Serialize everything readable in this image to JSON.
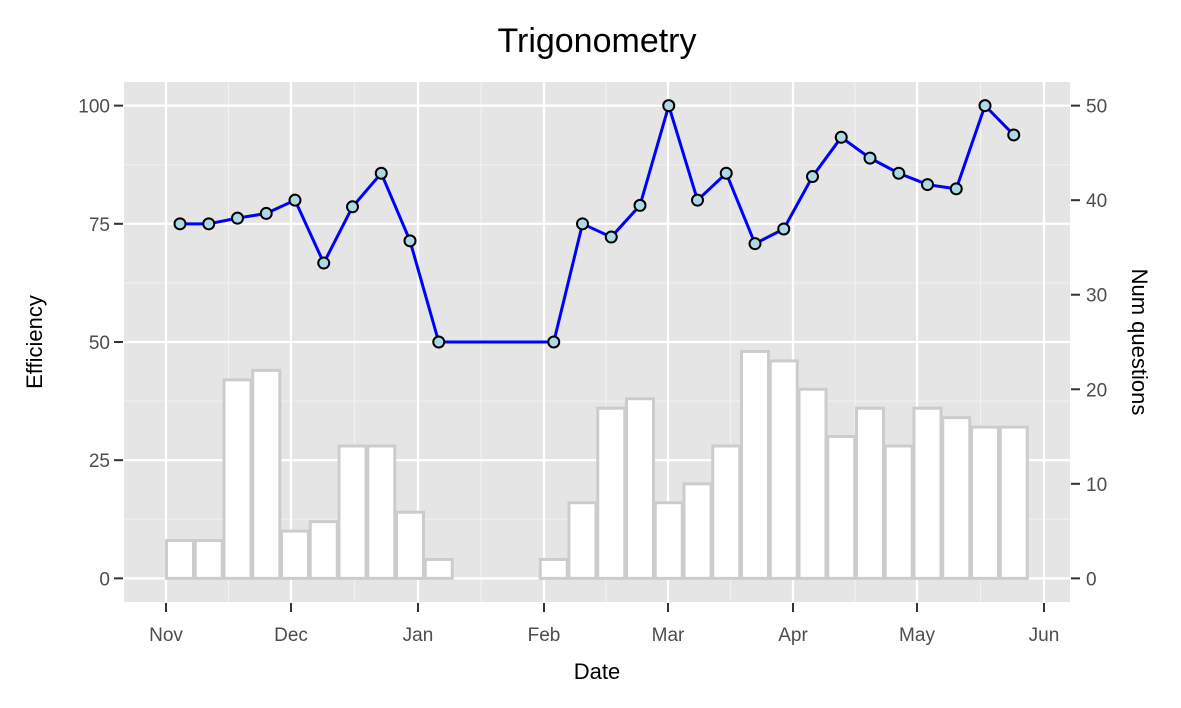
{
  "chart_data": {
    "type": "bar+line",
    "title": "Trigonometry",
    "xlabel": "Date",
    "ylabel": "Efficiency",
    "y2label": "Num questions",
    "x_tick_labels": [
      "Nov",
      "Dec",
      "Jan",
      "Feb",
      "Mar",
      "Apr",
      "May",
      "Jun"
    ],
    "y_ticks": [
      0,
      25,
      50,
      75,
      100
    ],
    "y2_ticks": [
      0,
      10,
      20,
      30,
      40,
      50
    ],
    "ylim": [
      -5,
      105
    ],
    "y2lim": [
      -2.5,
      52.5
    ],
    "grid": true,
    "bars": {
      "name": "Num questions",
      "axis": "right",
      "fill": "#ffffff",
      "stroke": "#cccccc",
      "values": [
        {
          "week": 0,
          "value": 4
        },
        {
          "week": 1,
          "value": 4
        },
        {
          "week": 2,
          "value": 21
        },
        {
          "week": 3,
          "value": 22
        },
        {
          "week": 4,
          "value": 5
        },
        {
          "week": 5,
          "value": 6
        },
        {
          "week": 6,
          "value": 14
        },
        {
          "week": 7,
          "value": 14
        },
        {
          "week": 8,
          "value": 7
        },
        {
          "week": 9,
          "value": 2
        },
        {
          "week": 13,
          "value": 2
        },
        {
          "week": 14,
          "value": 8
        },
        {
          "week": 15,
          "value": 18
        },
        {
          "week": 16,
          "value": 19
        },
        {
          "week": 17,
          "value": 8
        },
        {
          "week": 18,
          "value": 10
        },
        {
          "week": 19,
          "value": 14
        },
        {
          "week": 20,
          "value": 24
        },
        {
          "week": 21,
          "value": 23
        },
        {
          "week": 22,
          "value": 20
        },
        {
          "week": 23,
          "value": 15
        },
        {
          "week": 24,
          "value": 18
        },
        {
          "week": 25,
          "value": 14
        },
        {
          "week": 26,
          "value": 18
        },
        {
          "week": 27,
          "value": 17
        },
        {
          "week": 28,
          "value": 16
        },
        {
          "week": 29,
          "value": 16
        }
      ]
    },
    "line": {
      "name": "Efficiency",
      "axis": "left",
      "color": "#0000ff",
      "marker_fill": "#add8e6",
      "marker_stroke": "#000000",
      "values": [
        {
          "week": 0,
          "value": 75
        },
        {
          "week": 1,
          "value": 75
        },
        {
          "week": 2,
          "value": 76.2
        },
        {
          "week": 3,
          "value": 77.2
        },
        {
          "week": 4,
          "value": 80
        },
        {
          "week": 5,
          "value": 66.7
        },
        {
          "week": 6,
          "value": 78.6
        },
        {
          "week": 7,
          "value": 85.7
        },
        {
          "week": 8,
          "value": 71.4
        },
        {
          "week": 9,
          "value": 50
        },
        {
          "week": 13,
          "value": 50
        },
        {
          "week": 14,
          "value": 75
        },
        {
          "week": 15,
          "value": 72.2
        },
        {
          "week": 16,
          "value": 78.9
        },
        {
          "week": 17,
          "value": 100
        },
        {
          "week": 18,
          "value": 80
        },
        {
          "week": 19,
          "value": 85.7
        },
        {
          "week": 20,
          "value": 70.8
        },
        {
          "week": 21,
          "value": 73.9
        },
        {
          "week": 22,
          "value": 85
        },
        {
          "week": 23,
          "value": 93.3
        },
        {
          "week": 24,
          "value": 88.9
        },
        {
          "week": 25,
          "value": 85.7
        },
        {
          "week": 26,
          "value": 83.3
        },
        {
          "week": 27,
          "value": 82.4
        },
        {
          "week": 28,
          "value": 100
        },
        {
          "week": 29,
          "value": 93.8
        }
      ]
    }
  }
}
